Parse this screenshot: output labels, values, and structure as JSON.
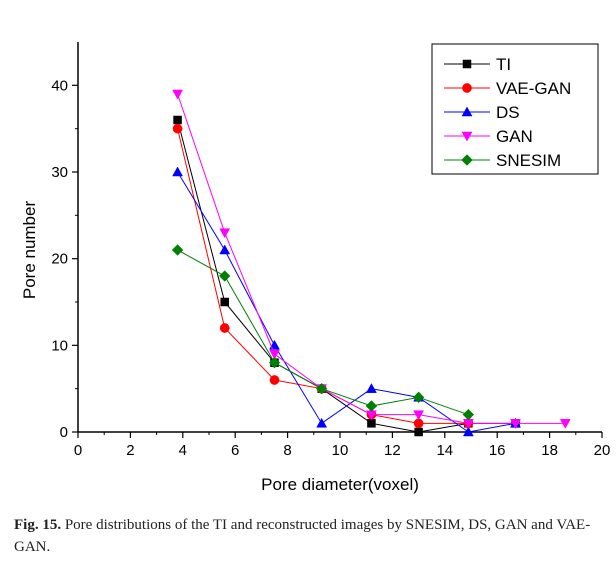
{
  "caption": {
    "label": "Fig. 15.",
    "text": "Pore distributions of the TI and reconstructed images by SNESIM, DS, GAN and VAE-GAN."
  },
  "chart_data": {
    "type": "line",
    "xlabel": "Pore diameter(voxel)",
    "ylabel": "Pore number",
    "xlim": [
      0,
      20
    ],
    "ylim": [
      0,
      45
    ],
    "xticks": [
      0,
      2,
      4,
      6,
      8,
      10,
      12,
      14,
      16,
      18,
      20
    ],
    "yticks": [
      0,
      10,
      20,
      30,
      40
    ],
    "legend_position": "top-right",
    "series": [
      {
        "name": "TI",
        "color": "#000000",
        "marker": "square",
        "x": [
          3.8,
          5.6,
          7.5,
          9.3,
          11.2,
          13.0,
          14.9,
          16.7
        ],
        "y": [
          36,
          15,
          8,
          5,
          1,
          0,
          1,
          1
        ]
      },
      {
        "name": "VAE-GAN",
        "color": "#ff0000",
        "marker": "circle",
        "x": [
          3.8,
          5.6,
          7.5,
          9.3,
          11.2,
          13.0,
          14.9
        ],
        "y": [
          35,
          12,
          6,
          5,
          2,
          1,
          1
        ]
      },
      {
        "name": "DS",
        "color": "#0000ff",
        "marker": "triangle-up",
        "x": [
          3.8,
          5.6,
          7.5,
          9.3,
          11.2,
          13.0,
          14.9,
          16.7
        ],
        "y": [
          30,
          21,
          10,
          1,
          5,
          4,
          0,
          1
        ]
      },
      {
        "name": "GAN",
        "color": "#ff00ff",
        "marker": "triangle-down",
        "x": [
          3.8,
          5.6,
          7.5,
          9.3,
          11.2,
          13.0,
          14.9,
          16.7,
          18.6
        ],
        "y": [
          39,
          23,
          9,
          5,
          2,
          2,
          1,
          1,
          1
        ]
      },
      {
        "name": "SNESIM",
        "color": "#008000",
        "marker": "diamond",
        "x": [
          3.8,
          5.6,
          7.5,
          9.3,
          11.2,
          13.0,
          14.9
        ],
        "y": [
          21,
          18,
          8,
          5,
          3,
          4,
          2
        ]
      }
    ]
  }
}
